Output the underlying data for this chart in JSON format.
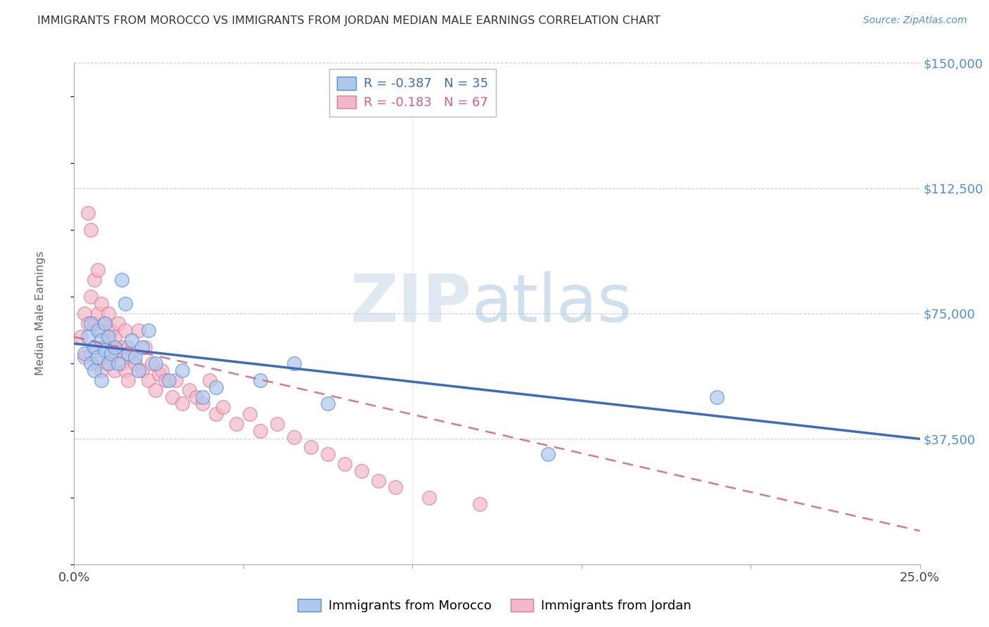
{
  "title": "IMMIGRANTS FROM MOROCCO VS IMMIGRANTS FROM JORDAN MEDIAN MALE EARNINGS CORRELATION CHART",
  "source": "Source: ZipAtlas.com",
  "ylabel": "Median Male Earnings",
  "xlim": [
    0.0,
    0.25
  ],
  "ylim": [
    0,
    150000
  ],
  "yticks": [
    0,
    37500,
    75000,
    112500,
    150000
  ],
  "ytick_labels": [
    "",
    "$37,500",
    "$75,000",
    "$112,500",
    "$150,000"
  ],
  "xticks": [
    0.0,
    0.05,
    0.1,
    0.15,
    0.2,
    0.25
  ],
  "xtick_labels": [
    "0.0%",
    "",
    "",
    "",
    "",
    "25.0%"
  ],
  "watermark_zip": "ZIP",
  "watermark_atlas": "atlas",
  "morocco_color": "#adc8ed",
  "jordan_color": "#f2b8c8",
  "morocco_edge_color": "#5b8fd4",
  "jordan_edge_color": "#e07898",
  "morocco_line_color": "#3a6bbf",
  "jordan_line_color": "#d06080",
  "background_color": "#ffffff",
  "grid_color": "#cccccc",
  "title_color": "#333333",
  "right_ytick_color": "#4a90d9",
  "morocco_R": "-0.387",
  "morocco_N": "35",
  "jordan_R": "-0.183",
  "jordan_N": "67",
  "morocco_scatter_x": [
    0.003,
    0.004,
    0.005,
    0.005,
    0.006,
    0.006,
    0.007,
    0.007,
    0.008,
    0.008,
    0.009,
    0.009,
    0.01,
    0.01,
    0.011,
    0.012,
    0.013,
    0.014,
    0.015,
    0.016,
    0.017,
    0.018,
    0.019,
    0.02,
    0.022,
    0.024,
    0.028,
    0.032,
    0.038,
    0.042,
    0.055,
    0.065,
    0.075,
    0.19,
    0.14
  ],
  "morocco_scatter_y": [
    63000,
    68000,
    60000,
    72000,
    65000,
    58000,
    70000,
    62000,
    67000,
    55000,
    64000,
    72000,
    60000,
    68000,
    63000,
    65000,
    60000,
    85000,
    78000,
    63000,
    67000,
    62000,
    58000,
    65000,
    70000,
    60000,
    55000,
    58000,
    50000,
    53000,
    55000,
    60000,
    48000,
    50000,
    33000
  ],
  "jordan_scatter_x": [
    0.002,
    0.003,
    0.003,
    0.004,
    0.004,
    0.005,
    0.005,
    0.005,
    0.006,
    0.006,
    0.006,
    0.007,
    0.007,
    0.007,
    0.008,
    0.008,
    0.008,
    0.009,
    0.009,
    0.01,
    0.01,
    0.01,
    0.011,
    0.011,
    0.012,
    0.012,
    0.013,
    0.013,
    0.014,
    0.014,
    0.015,
    0.015,
    0.016,
    0.016,
    0.017,
    0.018,
    0.019,
    0.02,
    0.021,
    0.022,
    0.023,
    0.024,
    0.025,
    0.026,
    0.027,
    0.029,
    0.03,
    0.032,
    0.034,
    0.036,
    0.038,
    0.04,
    0.042,
    0.044,
    0.048,
    0.052,
    0.055,
    0.06,
    0.065,
    0.07,
    0.075,
    0.08,
    0.085,
    0.09,
    0.095,
    0.105,
    0.12
  ],
  "jordan_scatter_y": [
    68000,
    75000,
    62000,
    105000,
    72000,
    100000,
    80000,
    63000,
    85000,
    72000,
    65000,
    88000,
    75000,
    60000,
    78000,
    70000,
    58000,
    72000,
    65000,
    75000,
    68000,
    60000,
    70000,
    62000,
    68000,
    58000,
    72000,
    64000,
    65000,
    60000,
    70000,
    58000,
    65000,
    55000,
    62000,
    60000,
    70000,
    58000,
    65000,
    55000,
    60000,
    52000,
    57000,
    58000,
    55000,
    50000,
    55000,
    48000,
    52000,
    50000,
    48000,
    55000,
    45000,
    47000,
    42000,
    45000,
    40000,
    42000,
    38000,
    35000,
    33000,
    30000,
    28000,
    25000,
    23000,
    20000,
    18000
  ],
  "morocco_line_x": [
    0.0,
    0.25
  ],
  "morocco_line_y": [
    66000,
    37500
  ],
  "jordan_line_x": [
    0.0,
    0.25
  ],
  "jordan_line_y": [
    68000,
    10000
  ]
}
